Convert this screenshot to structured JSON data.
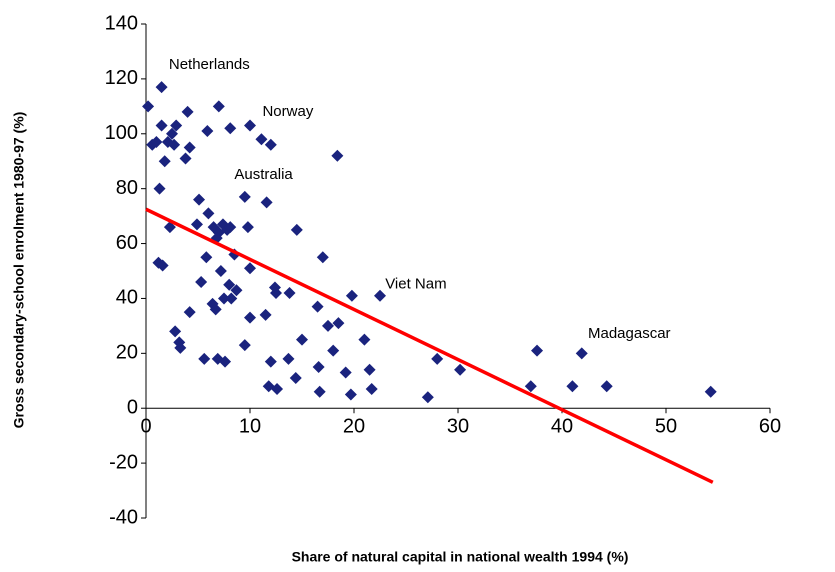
{
  "chart_data": {
    "type": "scatter",
    "xlabel": "Share of natural capital in national wealth 1994 (%)",
    "ylabel": "Gross secondary-school enrolment 1980-97 (%)",
    "xlim": [
      0,
      60
    ],
    "xticks": [
      0,
      10,
      20,
      30,
      40,
      50,
      60
    ],
    "ylim": [
      -40,
      140
    ],
    "yticks": [
      -40,
      -20,
      0,
      20,
      40,
      60,
      80,
      100,
      120,
      140
    ],
    "grid": false,
    "series": [
      {
        "color": "#1a237e",
        "marker": "diamond",
        "x": [
          0.2,
          1.5,
          0.6,
          1,
          1.5,
          1.8,
          1.3,
          2.1,
          2.5,
          2.9,
          2.7,
          3.8,
          4,
          4.2,
          5.9,
          7,
          8.1,
          10,
          11.1,
          12,
          18.4,
          1.2,
          1.6,
          2.3,
          4.9,
          5.1,
          6,
          6.5,
          7,
          7.4,
          7.8,
          8.1,
          6.8,
          9.5,
          9.8,
          11.6,
          14.5,
          5.8,
          6.4,
          6.7,
          7.2,
          7.5,
          8,
          8.2,
          8.5,
          8.7,
          10,
          12.4,
          12.5,
          13.8,
          17,
          16.5,
          17.5,
          18.5,
          19.8,
          22.5,
          2.8,
          3.2,
          3.3,
          4.2,
          5.3,
          5.6,
          6.9,
          7.6,
          9.5,
          10,
          11.5,
          12,
          11.8,
          12.6,
          13.7,
          14.4,
          15,
          16.6,
          16.7,
          18,
          19.2,
          19.7,
          21,
          21.5,
          21.7,
          27.1,
          28,
          30.2,
          37,
          37.6,
          41,
          41.9,
          44.3,
          54.3
        ],
        "values": [
          110,
          117,
          96,
          97,
          103,
          90,
          80,
          97,
          100,
          103,
          96,
          91,
          108,
          95,
          101,
          110,
          102,
          103,
          98,
          96,
          92,
          53,
          52,
          66,
          67,
          76,
          71,
          66,
          64,
          67,
          65,
          66,
          62,
          77,
          66,
          75,
          65,
          55,
          38,
          36,
          50,
          40,
          45,
          40,
          56,
          43,
          51,
          44,
          42,
          42,
          55,
          37,
          30,
          31,
          41,
          41,
          28,
          24,
          22,
          35,
          46,
          18,
          18,
          17,
          23,
          33,
          34,
          17,
          8,
          7,
          18,
          11,
          25,
          15,
          6,
          21,
          13,
          5,
          25,
          14,
          7,
          4,
          18,
          14,
          8,
          21,
          8,
          20,
          8,
          6
        ]
      },
      {
        "color": "#ff0000",
        "marker": "line",
        "x": [
          0,
          54.5
        ],
        "values": [
          72.5,
          -27
        ]
      }
    ],
    "annotations": [
      {
        "text": "Netherlands",
        "x": 2.2,
        "y": 125
      },
      {
        "text": "Norway",
        "x": 11.2,
        "y": 108
      },
      {
        "text": "Australia",
        "x": 8.5,
        "y": 85
      },
      {
        "text": "Viet Nam",
        "x": 23,
        "y": 45
      },
      {
        "text": "Madagascar",
        "x": 42.5,
        "y": 27
      }
    ]
  }
}
